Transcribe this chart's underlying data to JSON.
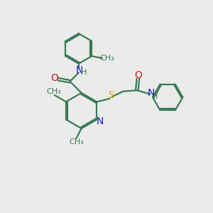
{
  "bg_color": "#ebebeb",
  "bond_color": "#3a7a56",
  "N_color": "#1a1acc",
  "O_color": "#cc1a1a",
  "S_color": "#ccaa00",
  "line_width": 1.6,
  "figsize": [
    3.0,
    3.0
  ],
  "dpi": 100,
  "xlim": [
    0,
    10
  ],
  "ylim": [
    0,
    10
  ]
}
